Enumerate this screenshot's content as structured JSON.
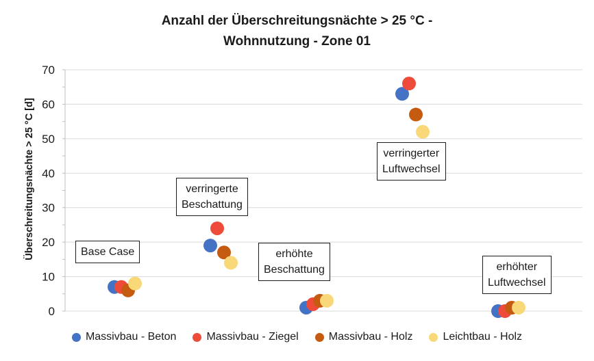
{
  "chart_data": {
    "type": "scatter",
    "title": [
      "Anzahl der Überschreitungsnächte > 25 °C -",
      "Wohnnutzung - Zone 01"
    ],
    "ylabel": "Überschreitungsnächte > 25 °C [d]",
    "xlabel": "",
    "ylim": [
      0,
      70
    ],
    "yticks": [
      0,
      10,
      20,
      30,
      40,
      50,
      60,
      70
    ],
    "grid": true,
    "legend_position": "bottom",
    "categories": [
      "Base Case",
      "verringerte Beschattung",
      "erhöhte Beschattung",
      "verringerter Luftwechsel",
      "erhöhter Luftwechsel"
    ],
    "series": [
      {
        "name": "Massivbau - Beton",
        "color": "#4472C4",
        "values": [
          7,
          19,
          1,
          63,
          0
        ]
      },
      {
        "name": "Massivbau - Ziegel",
        "color": "#EE4B3B",
        "values": [
          7,
          24,
          2,
          66,
          0
        ]
      },
      {
        "name": "Massivbau - Holz",
        "color": "#C55A11",
        "values": [
          6,
          17,
          3,
          57,
          1
        ]
      },
      {
        "name": "Leichtbau - Holz",
        "color": "#F9D87A",
        "values": [
          8,
          14,
          3,
          52,
          1
        ]
      }
    ],
    "annotations": [
      {
        "lines": [
          "Base Case"
        ]
      },
      {
        "lines": [
          "verringerte",
          "Beschattung"
        ]
      },
      {
        "lines": [
          "erhöhte",
          "Beschattung"
        ]
      },
      {
        "lines": [
          "verringerter",
          "Luftwechsel"
        ]
      },
      {
        "lines": [
          "erhöhter",
          "Luftwechsel"
        ]
      }
    ]
  }
}
